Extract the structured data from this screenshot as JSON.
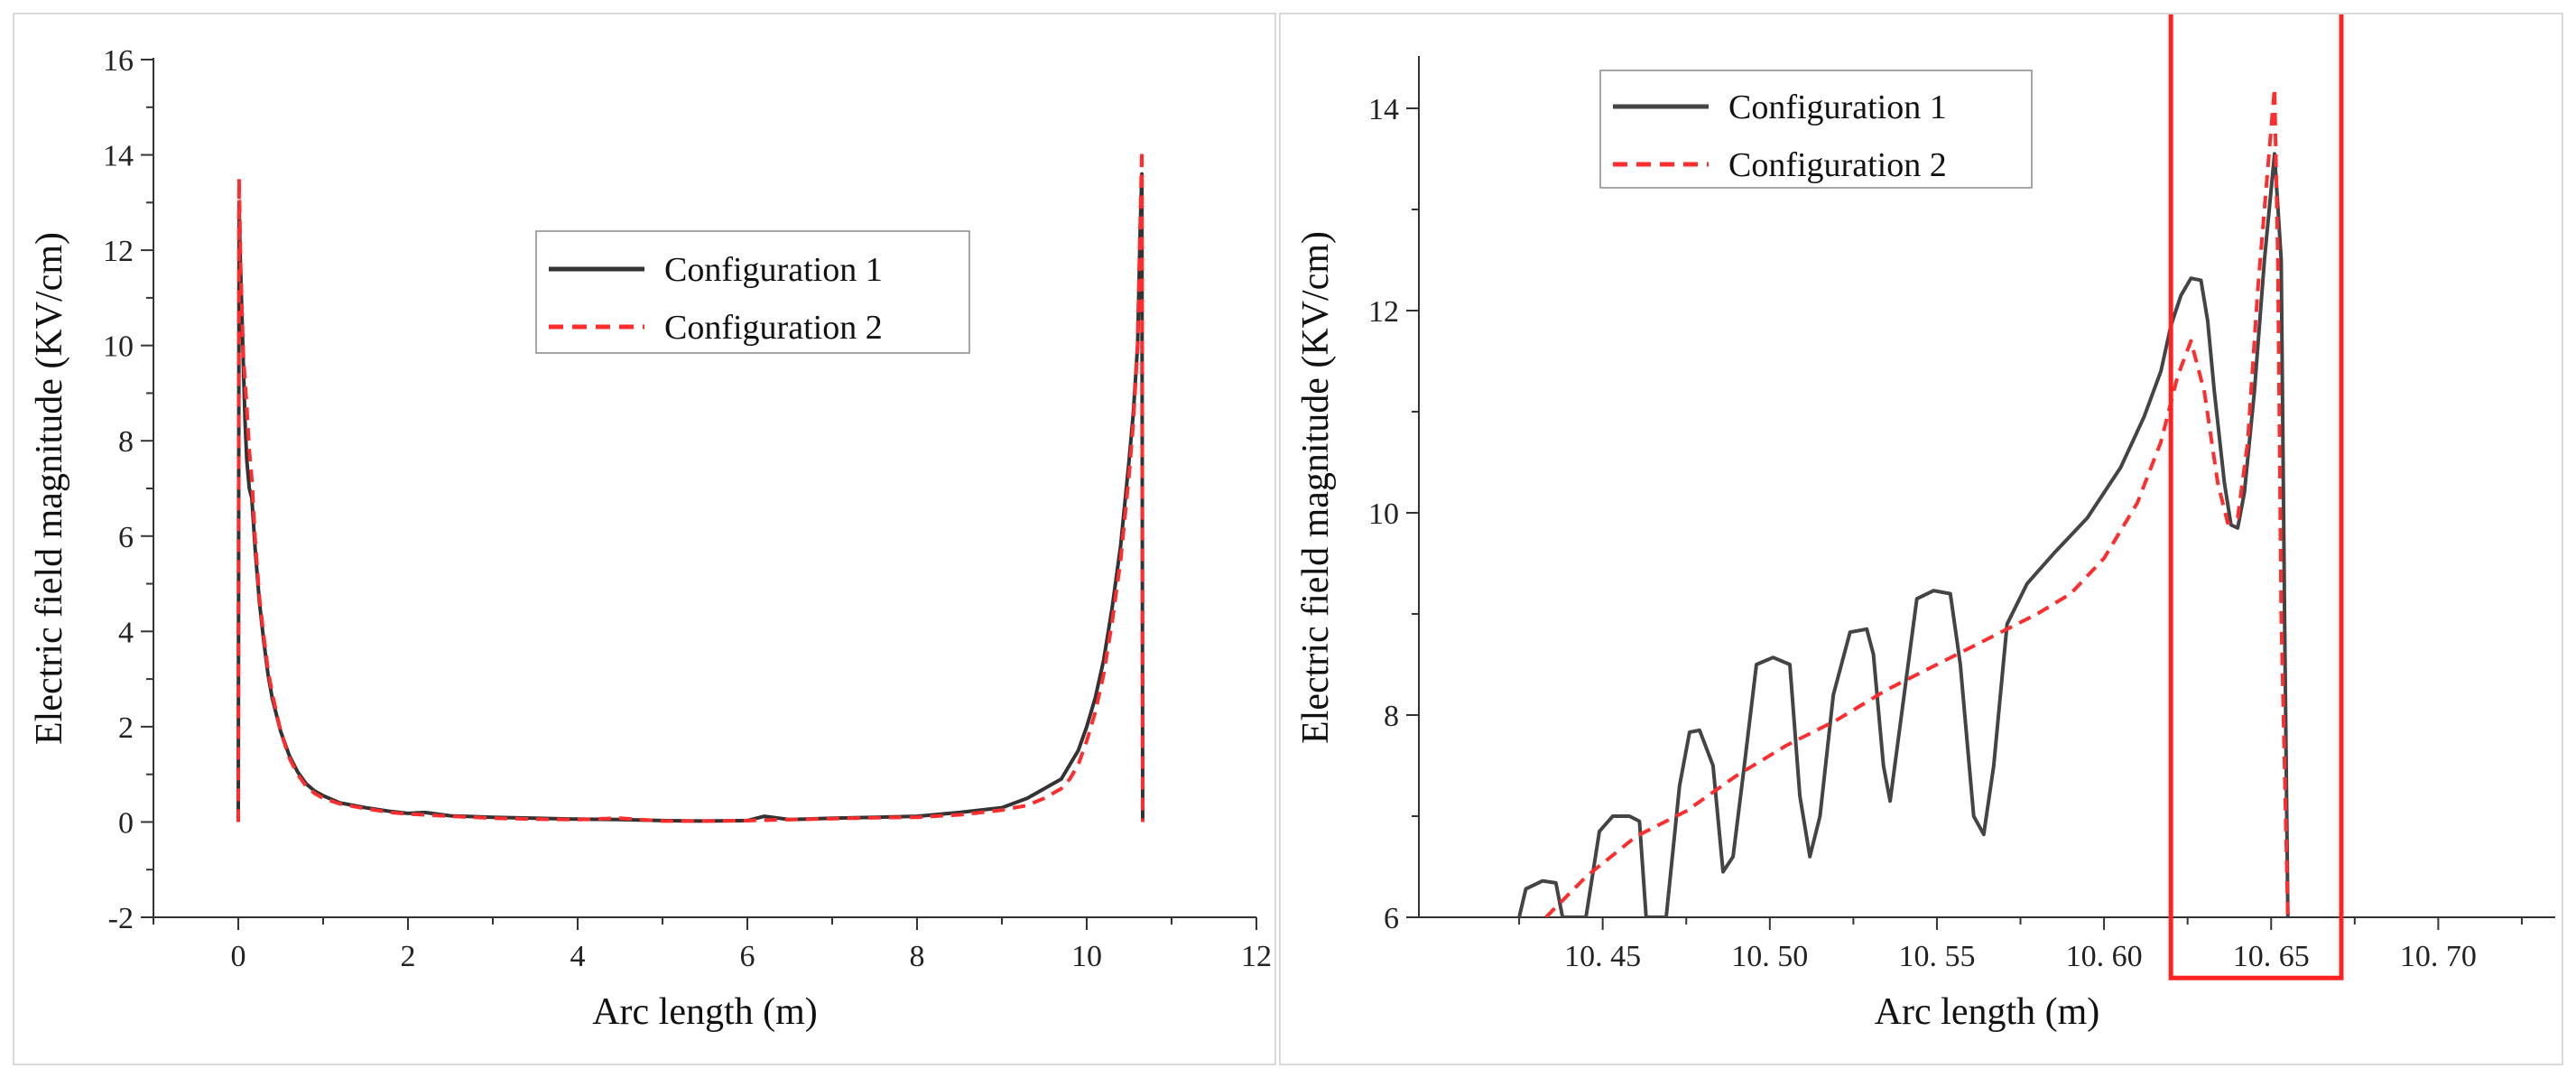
{
  "chart_data": [
    {
      "type": "line",
      "xlabel": "Arc length (m)",
      "ylabel": "Electric field magnitude  (KV/cm)",
      "xlim": [
        -1,
        12
      ],
      "ylim": [
        -2,
        16
      ],
      "xticks": [
        0,
        2,
        4,
        6,
        8,
        10,
        12
      ],
      "yticks": [
        -2,
        0,
        2,
        4,
        6,
        8,
        10,
        12,
        14,
        16
      ],
      "legend": {
        "placement": "center"
      },
      "series": [
        {
          "name": "Configuration 1",
          "color": "#333333",
          "dash": "solid",
          "points": [
            [
              0,
              0
            ],
            [
              0.01,
              13.0
            ],
            [
              0.02,
              12.0
            ],
            [
              0.04,
              10.8
            ],
            [
              0.06,
              9.6
            ],
            [
              0.08,
              8.4
            ],
            [
              0.1,
              7.6
            ],
            [
              0.13,
              7.0
            ],
            [
              0.16,
              6.8
            ],
            [
              0.2,
              5.7
            ],
            [
              0.25,
              4.6
            ],
            [
              0.3,
              3.8
            ],
            [
              0.35,
              3.1
            ],
            [
              0.4,
              2.6
            ],
            [
              0.5,
              1.9
            ],
            [
              0.6,
              1.4
            ],
            [
              0.7,
              1.05
            ],
            [
              0.8,
              0.8
            ],
            [
              0.9,
              0.65
            ],
            [
              1.0,
              0.55
            ],
            [
              1.2,
              0.4
            ],
            [
              1.5,
              0.3
            ],
            [
              1.8,
              0.22
            ],
            [
              2.0,
              0.18
            ],
            [
              2.2,
              0.2
            ],
            [
              2.5,
              0.13
            ],
            [
              3.0,
              0.1
            ],
            [
              3.5,
              0.08
            ],
            [
              4.0,
              0.06
            ],
            [
              4.5,
              0.05
            ],
            [
              5.0,
              0.03
            ],
            [
              5.5,
              0.02
            ],
            [
              6.0,
              0.03
            ],
            [
              6.2,
              0.12
            ],
            [
              6.5,
              0.05
            ],
            [
              7.0,
              0.08
            ],
            [
              7.5,
              0.1
            ],
            [
              8.0,
              0.12
            ],
            [
              8.5,
              0.2
            ],
            [
              9.0,
              0.3
            ],
            [
              9.3,
              0.5
            ],
            [
              9.5,
              0.7
            ],
            [
              9.7,
              0.9
            ],
            [
              9.8,
              1.2
            ],
            [
              9.9,
              1.5
            ],
            [
              10.0,
              2.0
            ],
            [
              10.1,
              2.6
            ],
            [
              10.2,
              3.4
            ],
            [
              10.3,
              4.5
            ],
            [
              10.4,
              5.8
            ],
            [
              10.5,
              7.6
            ],
            [
              10.55,
              8.6
            ],
            [
              10.6,
              10.0
            ],
            [
              10.63,
              12.4
            ],
            [
              10.65,
              13.6
            ],
            [
              10.66,
              0
            ]
          ]
        },
        {
          "name": "Configuration 2",
          "color": "#ff2d2d",
          "dash": "dashed",
          "points": [
            [
              0,
              0
            ],
            [
              0.01,
              13.5
            ],
            [
              0.03,
              11.5
            ],
            [
              0.06,
              9.8
            ],
            [
              0.1,
              8.7
            ],
            [
              0.13,
              7.8
            ],
            [
              0.16,
              7.2
            ],
            [
              0.2,
              5.9
            ],
            [
              0.25,
              4.7
            ],
            [
              0.3,
              3.9
            ],
            [
              0.35,
              3.2
            ],
            [
              0.4,
              2.7
            ],
            [
              0.5,
              1.9
            ],
            [
              0.6,
              1.35
            ],
            [
              0.7,
              1.0
            ],
            [
              0.8,
              0.75
            ],
            [
              0.9,
              0.6
            ],
            [
              1.0,
              0.5
            ],
            [
              1.2,
              0.38
            ],
            [
              1.5,
              0.28
            ],
            [
              1.8,
              0.2
            ],
            [
              2.0,
              0.17
            ],
            [
              2.5,
              0.12
            ],
            [
              3.0,
              0.08
            ],
            [
              3.5,
              0.06
            ],
            [
              4.0,
              0.05
            ],
            [
              4.5,
              0.08
            ],
            [
              5.0,
              0.02
            ],
            [
              5.5,
              0.02
            ],
            [
              6.0,
              0.03
            ],
            [
              6.5,
              0.05
            ],
            [
              7.0,
              0.07
            ],
            [
              7.5,
              0.09
            ],
            [
              8.0,
              0.1
            ],
            [
              8.5,
              0.15
            ],
            [
              9.0,
              0.25
            ],
            [
              9.3,
              0.35
            ],
            [
              9.5,
              0.5
            ],
            [
              9.7,
              0.7
            ],
            [
              9.8,
              0.9
            ],
            [
              9.9,
              1.2
            ],
            [
              10.0,
              1.7
            ],
            [
              10.1,
              2.3
            ],
            [
              10.2,
              3.1
            ],
            [
              10.3,
              4.2
            ],
            [
              10.4,
              5.5
            ],
            [
              10.5,
              7.3
            ],
            [
              10.55,
              8.4
            ],
            [
              10.6,
              10.0
            ],
            [
              10.63,
              12.5
            ],
            [
              10.65,
              14.1
            ],
            [
              10.66,
              0
            ]
          ]
        }
      ]
    },
    {
      "type": "line",
      "xlabel": "Arc length (m)",
      "ylabel": "Electric field magnitude  (KV/cm)",
      "xlim": [
        10.395,
        10.735
      ],
      "ylim": [
        6,
        14.5
      ],
      "xticks": [
        10.45,
        10.5,
        10.55,
        10.6,
        10.65,
        10.7
      ],
      "xticklabels": [
        "10. 45",
        "10. 50",
        "10. 55",
        "10. 60",
        "10. 65",
        "10. 70"
      ],
      "yticks": [
        6,
        8,
        10,
        12,
        14
      ],
      "legend": {
        "placement": "top-left"
      },
      "highlight_box": {
        "x_range": [
          10.62,
          10.671
        ],
        "y_range": [
          5.4,
          14.5
        ],
        "color": "#ff2222"
      },
      "series": [
        {
          "name": "Configuration 1",
          "color": "#444444",
          "dash": "solid",
          "points": [
            [
              10.425,
              6.0
            ],
            [
              10.427,
              6.28
            ],
            [
              10.432,
              6.36
            ],
            [
              10.436,
              6.34
            ],
            [
              10.438,
              6.0
            ],
            [
              10.445,
              6.0
            ],
            [
              10.449,
              6.85
            ],
            [
              10.453,
              7.0
            ],
            [
              10.458,
              7.0
            ],
            [
              10.461,
              6.95
            ],
            [
              10.463,
              6.0
            ],
            [
              10.469,
              6.0
            ],
            [
              10.473,
              7.3
            ],
            [
              10.476,
              7.83
            ],
            [
              10.479,
              7.85
            ],
            [
              10.483,
              7.5
            ],
            [
              10.486,
              6.45
            ],
            [
              10.489,
              6.6
            ],
            [
              10.492,
              7.4
            ],
            [
              10.496,
              8.5
            ],
            [
              10.501,
              8.57
            ],
            [
              10.506,
              8.5
            ],
            [
              10.509,
              7.2
            ],
            [
              10.512,
              6.6
            ],
            [
              10.515,
              7.0
            ],
            [
              10.519,
              8.2
            ],
            [
              10.524,
              8.82
            ],
            [
              10.529,
              8.85
            ],
            [
              10.531,
              8.6
            ],
            [
              10.534,
              7.5
            ],
            [
              10.536,
              7.15
            ],
            [
              10.539,
              7.9
            ],
            [
              10.544,
              9.15
            ],
            [
              10.549,
              9.23
            ],
            [
              10.554,
              9.2
            ],
            [
              10.557,
              8.5
            ],
            [
              10.561,
              7.0
            ],
            [
              10.564,
              6.82
            ],
            [
              10.567,
              7.5
            ],
            [
              10.571,
              8.9
            ],
            [
              10.577,
              9.3
            ],
            [
              10.585,
              9.6
            ],
            [
              10.595,
              9.95
            ],
            [
              10.605,
              10.45
            ],
            [
              10.612,
              10.95
            ],
            [
              10.617,
              11.4
            ],
            [
              10.62,
              11.85
            ],
            [
              10.623,
              12.15
            ],
            [
              10.626,
              12.32
            ],
            [
              10.629,
              12.3
            ],
            [
              10.631,
              11.9
            ],
            [
              10.633,
              11.2
            ],
            [
              10.636,
              10.3
            ],
            [
              10.638,
              9.88
            ],
            [
              10.64,
              9.85
            ],
            [
              10.642,
              10.2
            ],
            [
              10.645,
              11.2
            ],
            [
              10.648,
              12.5
            ],
            [
              10.651,
              13.55
            ],
            [
              10.653,
              12.5
            ],
            [
              10.654,
              9.0
            ],
            [
              10.655,
              6.0
            ]
          ]
        },
        {
          "name": "Configuration 2",
          "color": "#ff2d2d",
          "dash": "dashed",
          "points": [
            [
              10.433,
              6.0
            ],
            [
              10.445,
              6.4
            ],
            [
              10.46,
              6.8
            ],
            [
              10.475,
              7.05
            ],
            [
              10.49,
              7.4
            ],
            [
              10.505,
              7.7
            ],
            [
              10.52,
              7.95
            ],
            [
              10.535,
              8.25
            ],
            [
              10.55,
              8.5
            ],
            [
              10.565,
              8.75
            ],
            [
              10.58,
              9.0
            ],
            [
              10.59,
              9.2
            ],
            [
              10.6,
              9.55
            ],
            [
              10.61,
              10.1
            ],
            [
              10.617,
              10.7
            ],
            [
              10.622,
              11.35
            ],
            [
              10.626,
              11.7
            ],
            [
              10.63,
              11.2
            ],
            [
              10.634,
              10.3
            ],
            [
              10.637,
              9.9
            ],
            [
              10.64,
              9.95
            ],
            [
              10.643,
              10.7
            ],
            [
              10.646,
              12.2
            ],
            [
              10.649,
              13.4
            ],
            [
              10.651,
              14.2
            ],
            [
              10.652,
              12.5
            ],
            [
              10.653,
              9.0
            ],
            [
              10.655,
              6.0
            ]
          ]
        }
      ]
    }
  ]
}
